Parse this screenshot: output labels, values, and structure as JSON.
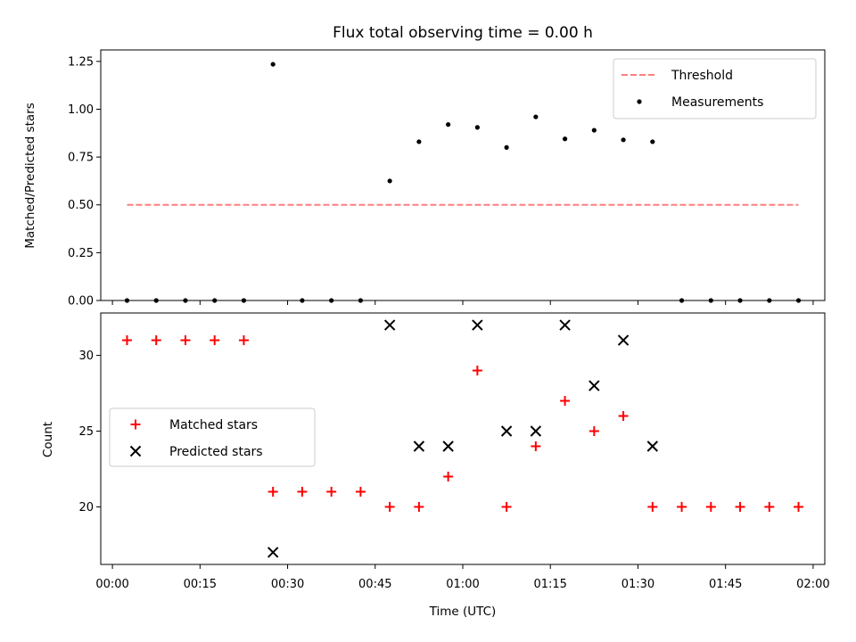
{
  "chart_data": [
    {
      "type": "scatter",
      "title": "Flux total observing time = 0.00 h",
      "ylabel": "Matched/Predicted stars",
      "xlim": [
        "23:58:00",
        "02:02:00"
      ],
      "ylim": [
        0,
        1.31
      ],
      "yticks": [
        0.0,
        0.25,
        0.5,
        0.75,
        1.0,
        1.25
      ],
      "ytick_labels": [
        "0.00",
        "0.25",
        "0.50",
        "0.75",
        "1.00",
        "1.25"
      ],
      "legend_position": "top-right",
      "series": [
        {
          "name": "Threshold",
          "style": "dashed-line",
          "color": "#ff7f7f",
          "x": [
            "00:02:30",
            "01:57:30"
          ],
          "y": [
            0.5,
            0.5
          ]
        },
        {
          "name": "Measurements",
          "style": "dot",
          "color": "#000000",
          "x": [
            "00:02:30",
            "00:07:30",
            "00:12:30",
            "00:17:30",
            "00:22:30",
            "00:27:30",
            "00:32:30",
            "00:37:30",
            "00:42:30",
            "00:47:30",
            "00:52:30",
            "00:57:30",
            "01:02:30",
            "01:07:30",
            "01:12:30",
            "01:17:30",
            "01:22:30",
            "01:27:30",
            "01:32:30",
            "01:37:30",
            "01:42:30",
            "01:47:30",
            "01:52:30",
            "01:57:30"
          ],
          "y": [
            0,
            0,
            0,
            0,
            0,
            1.235,
            0,
            0,
            0,
            0.625,
            0.83,
            0.92,
            0.905,
            0.8,
            0.96,
            0.845,
            0.89,
            0.84,
            0.83,
            0,
            0,
            0,
            0,
            0
          ]
        }
      ]
    },
    {
      "type": "scatter",
      "xlabel": "Time (UTC)",
      "ylabel": "Count",
      "xlim": [
        "23:58:00",
        "02:02:00"
      ],
      "xticks": [
        "00:00",
        "00:15",
        "00:30",
        "00:45",
        "01:00",
        "01:15",
        "01:30",
        "01:45",
        "02:00"
      ],
      "ylim": [
        16.2,
        32.8
      ],
      "yticks": [
        20,
        25,
        30
      ],
      "legend_position": "center-left",
      "series": [
        {
          "name": "Matched stars",
          "marker": "+",
          "color": "#ff0000",
          "x": [
            "00:02:30",
            "00:07:30",
            "00:12:30",
            "00:17:30",
            "00:22:30",
            "00:27:30",
            "00:32:30",
            "00:37:30",
            "00:42:30",
            "00:47:30",
            "00:52:30",
            "00:57:30",
            "01:02:30",
            "01:07:30",
            "01:12:30",
            "01:17:30",
            "01:22:30",
            "01:27:30",
            "01:32:30",
            "01:37:30",
            "01:42:30",
            "01:47:30",
            "01:52:30",
            "01:57:30"
          ],
          "y": [
            31,
            31,
            31,
            31,
            31,
            21,
            21,
            21,
            21,
            20,
            20,
            22,
            29,
            20,
            24,
            27,
            25,
            26,
            20,
            20,
            20,
            20,
            20,
            20
          ]
        },
        {
          "name": "Predicted stars",
          "marker": "x",
          "color": "#000000",
          "x": [
            "00:27:30",
            "00:47:30",
            "00:52:30",
            "00:57:30",
            "01:02:30",
            "01:07:30",
            "01:12:30",
            "01:17:30",
            "01:22:30",
            "01:27:30",
            "01:32:30"
          ],
          "y": [
            17,
            32,
            24,
            24,
            32,
            25,
            25,
            32,
            28,
            31,
            24
          ]
        }
      ]
    }
  ]
}
